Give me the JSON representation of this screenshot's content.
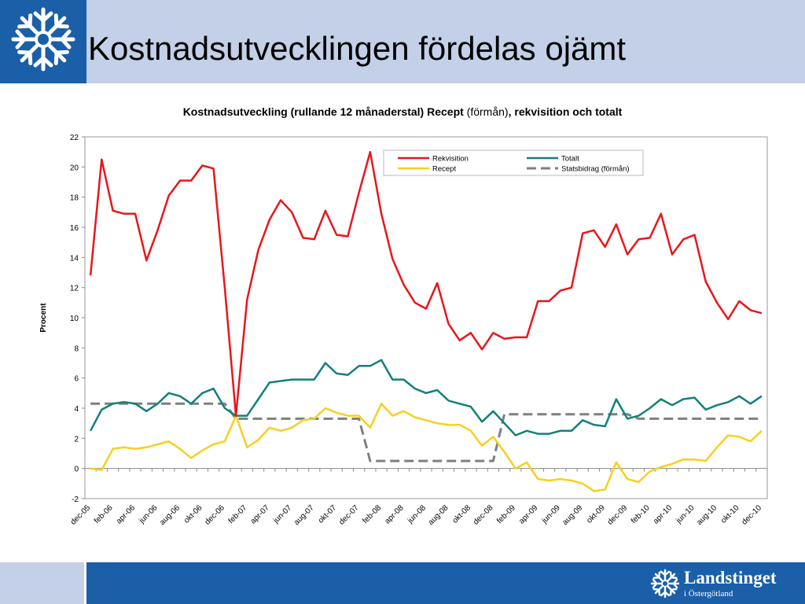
{
  "slide": {
    "title": "Kostnadsutvecklingen fördelas ojämt"
  },
  "brand": {
    "name": "Landstinget",
    "sub": "i Östergötland"
  },
  "icons": {
    "header_logo": "snowflake-logo-icon",
    "footer_logo": "snowflake-logo-icon"
  },
  "colors": {
    "header_blue": "#1a5fa8",
    "band_light": "#c3d0e8",
    "rekvisition": "#e8161b",
    "totalt": "#12807a",
    "recept": "#f5d020",
    "statsbidrag": "#7f7f7f"
  },
  "chart_title": {
    "part1": "Kostnadsutveckling (rullande 12 månaderstal) Recept",
    "part2": " (förmån)",
    "part3": ", rekvisition och totalt"
  },
  "chart_data": {
    "type": "line",
    "ylabel": "Procent",
    "ylim": [
      -2,
      22
    ],
    "yticks": [
      -2,
      0,
      2,
      4,
      6,
      8,
      10,
      12,
      14,
      16,
      18,
      20,
      22
    ],
    "grid": false,
    "legend": "top-right",
    "x": [
      "dec-05",
      "jan-06",
      "feb-06",
      "mar-06",
      "apr-06",
      "maj-06",
      "jun-06",
      "jul-06",
      "aug-06",
      "sep-06",
      "okt-06",
      "nov-06",
      "dec-06",
      "jan-07",
      "feb-07",
      "mar-07",
      "apr-07",
      "maj-07",
      "jun-07",
      "jul-07",
      "aug-07",
      "sep-07",
      "okt-07",
      "nov-07",
      "dec-07",
      "jan-08",
      "feb-08",
      "mar-08",
      "apr-08",
      "maj-08",
      "jun-08",
      "jul-08",
      "aug-08",
      "sep-08",
      "okt-08",
      "nov-08",
      "dec-08",
      "jan-09",
      "feb-09",
      "mar-09",
      "apr-09",
      "maj-09",
      "jun-09",
      "jul-09",
      "aug-09",
      "sep-09",
      "okt-09",
      "nov-09",
      "dec-09",
      "jan-10",
      "feb-10",
      "mar-10",
      "apr-10",
      "maj-10",
      "jun-10",
      "jul-10",
      "aug-10",
      "sep-10",
      "okt-10",
      "nov-10",
      "dec-10"
    ],
    "xtick_labels": [
      "dec-05",
      "feb-06",
      "apr-06",
      "jun-06",
      "aug-06",
      "okt-06",
      "dec-06",
      "feb-07",
      "apr-07",
      "jun-07",
      "aug-07",
      "okt-07",
      "dec-07",
      "feb-08",
      "apr-08",
      "jun-08",
      "aug-08",
      "okt-08",
      "dec-08",
      "feb-09",
      "apr-09",
      "jun-09",
      "aug-09",
      "okt-09",
      "dec-09",
      "feb-10",
      "apr-10",
      "jun-10",
      "aug-10",
      "okt-10",
      "dec-10"
    ],
    "series": [
      {
        "name": "Rekvisition",
        "color": "#e8161b",
        "style": "solid",
        "values": [
          12.8,
          20.5,
          17.1,
          16.9,
          16.9,
          13.8,
          15.8,
          18.1,
          19.1,
          19.1,
          20.1,
          19.9,
          12.0,
          3.5,
          11.2,
          14.5,
          16.5,
          17.8,
          17.0,
          15.3,
          15.2,
          17.1,
          15.5,
          15.4,
          18.3,
          21.0,
          16.9,
          13.9,
          12.2,
          11.0,
          10.6,
          12.3,
          9.6,
          8.5,
          9.0,
          7.9,
          9.0,
          8.6,
          8.7,
          8.7,
          11.1,
          11.1,
          11.8,
          12.0,
          15.6,
          15.8,
          14.7,
          16.2,
          14.2,
          15.2,
          15.3,
          16.9,
          14.2,
          15.2,
          15.5,
          12.4,
          11.0,
          9.9,
          11.1,
          10.5,
          10.3
        ]
      },
      {
        "name": "Totalt",
        "color": "#12807a",
        "style": "solid",
        "values": [
          2.5,
          3.9,
          4.3,
          4.4,
          4.3,
          3.8,
          4.3,
          5.0,
          4.8,
          4.3,
          5.0,
          5.3,
          4.0,
          3.5,
          3.5,
          4.6,
          5.7,
          5.8,
          5.9,
          5.9,
          5.9,
          7.0,
          6.3,
          6.2,
          6.8,
          6.8,
          7.2,
          5.9,
          5.9,
          5.3,
          5.0,
          5.2,
          4.5,
          4.3,
          4.1,
          3.1,
          3.8,
          3.0,
          2.2,
          2.5,
          2.3,
          2.3,
          2.5,
          2.5,
          3.2,
          2.9,
          2.8,
          4.6,
          3.3,
          3.5,
          4.0,
          4.6,
          4.2,
          4.6,
          4.7,
          3.9,
          4.2,
          4.4,
          4.8,
          4.3,
          4.8
        ]
      },
      {
        "name": "Recept",
        "color": "#f5d020",
        "style": "solid",
        "values": [
          0.0,
          -0.1,
          1.3,
          1.4,
          1.3,
          1.4,
          1.6,
          1.8,
          1.3,
          0.7,
          1.2,
          1.6,
          1.8,
          3.5,
          1.4,
          1.9,
          2.7,
          2.5,
          2.7,
          3.2,
          3.3,
          4.0,
          3.7,
          3.5,
          3.5,
          2.7,
          4.3,
          3.5,
          3.8,
          3.4,
          3.2,
          3.0,
          2.9,
          2.9,
          2.5,
          1.5,
          2.1,
          1.1,
          0.0,
          0.4,
          -0.7,
          -0.8,
          -0.7,
          -0.8,
          -1.0,
          -1.5,
          -1.4,
          0.4,
          -0.7,
          -0.9,
          -0.2,
          0.1,
          0.3,
          0.6,
          0.6,
          0.5,
          1.4,
          2.2,
          2.1,
          1.8,
          2.5
        ]
      },
      {
        "name": "Statsbidrag (förmån)",
        "color": "#7f7f7f",
        "style": "dashed",
        "values": [
          4.3,
          4.3,
          4.3,
          4.3,
          4.3,
          4.3,
          4.3,
          4.3,
          4.3,
          4.3,
          4.3,
          4.3,
          4.3,
          3.3,
          3.3,
          3.3,
          3.3,
          3.3,
          3.3,
          3.3,
          3.3,
          3.3,
          3.3,
          3.3,
          3.3,
          0.5,
          0.5,
          0.5,
          0.5,
          0.5,
          0.5,
          0.5,
          0.5,
          0.5,
          0.5,
          0.5,
          0.5,
          3.6,
          3.6,
          3.6,
          3.6,
          3.6,
          3.6,
          3.6,
          3.6,
          3.6,
          3.6,
          3.6,
          3.6,
          3.3,
          3.3,
          3.3,
          3.3,
          3.3,
          3.3,
          3.3,
          3.3,
          3.3,
          3.3,
          3.3,
          3.3
        ]
      }
    ]
  }
}
